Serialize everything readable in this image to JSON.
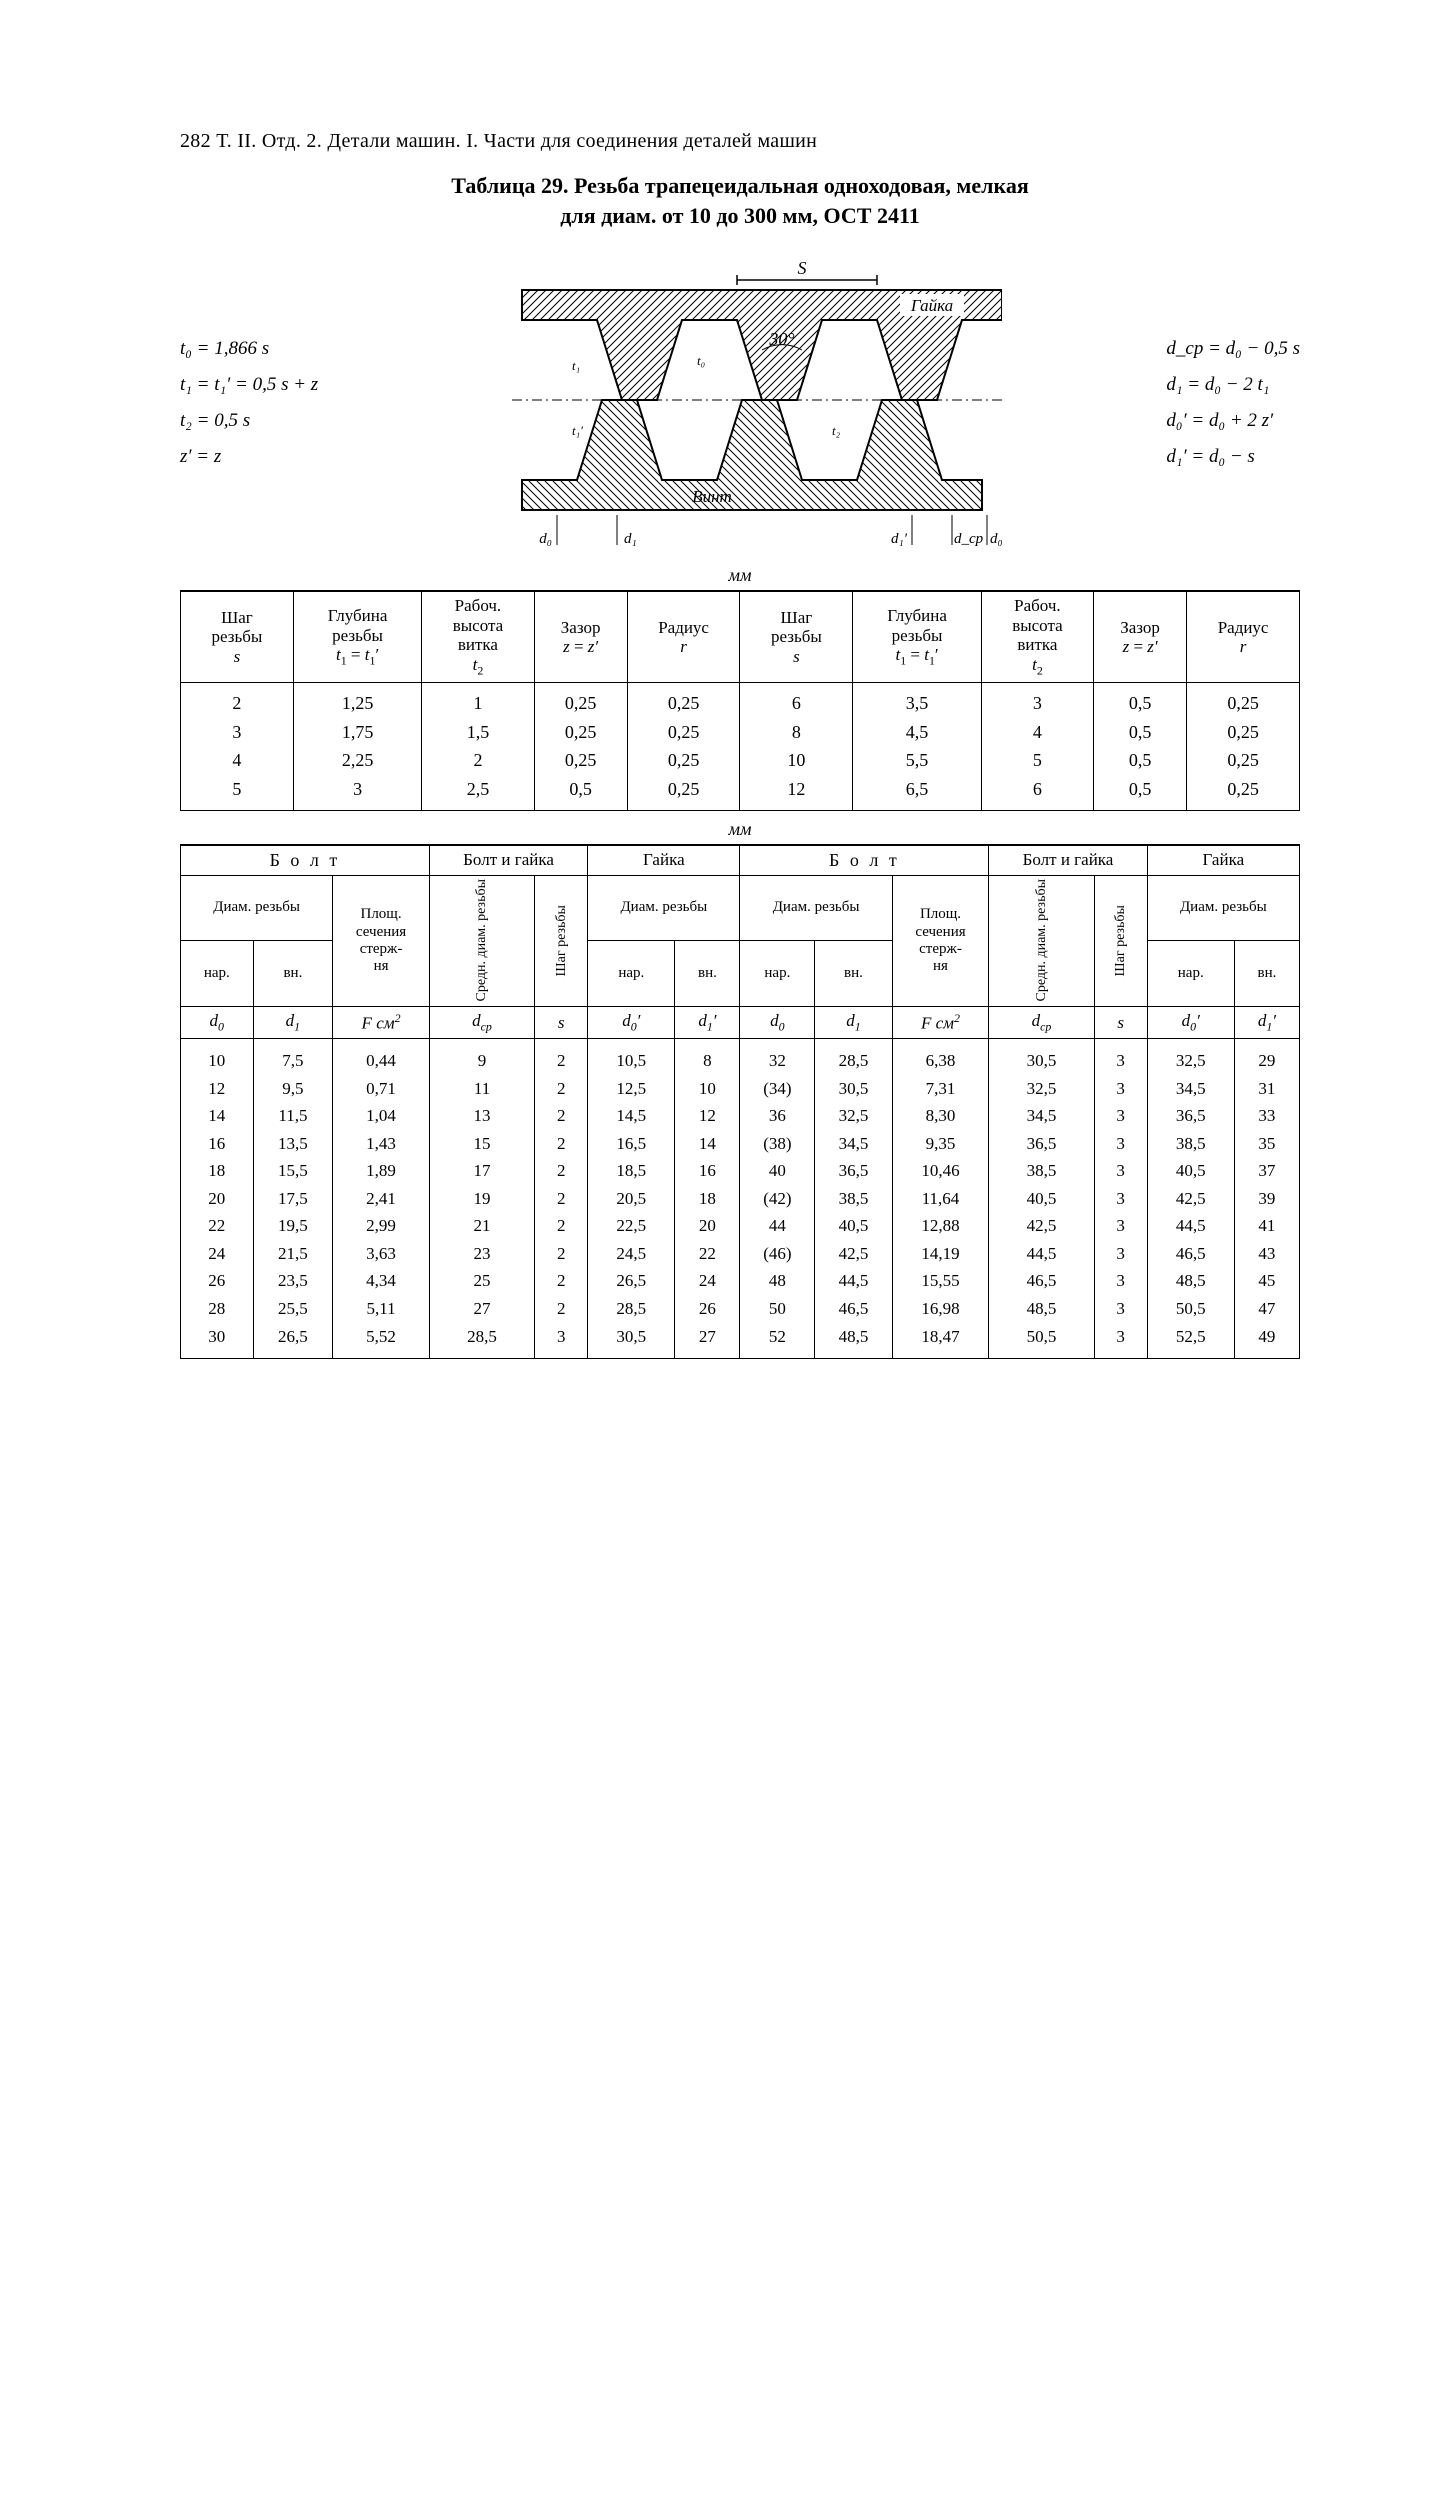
{
  "page_header": "282  Т. II. Отд. 2.  Детали машин. I.  Части для соединения деталей машин",
  "title_line1": "Таблица 29.  Резьба  трапецеидальная  одноходовая,  мелкая",
  "title_line2": "для диам. от 10 до 300 мм, ОСТ 2411",
  "left_eqs": [
    "t₀ = 1,866 s",
    "t₁ = t₁′ = 0,5 s + z",
    "t₂ = 0,5 s",
    "z′ = z"
  ],
  "right_eqs": [
    "d_cp = d₀ − 0,5 s",
    "d₁ = d₀ − 2 t₁",
    "d₀′ = d₀ + 2 z′",
    "d₁′ = d₀ − s"
  ],
  "fig_labels": {
    "nut": "Гайка",
    "screw": "Винт",
    "angle": "30°"
  },
  "unit_label": "мм",
  "table1": {
    "headers": [
      "Шаг резьбы\ns",
      "Глубина резьбы\nt₁ = t₁′",
      "Рабоч. высота витка\nt₂",
      "Зазор\nz = z′",
      "Радиус\nr",
      "Шаг резьбы\ns",
      "Глубина резьбы\nt₁ = t₁′",
      "Рабоч. высота витка\nt₂",
      "Зазор\nz = z′",
      "Радиус\nr"
    ],
    "rows": [
      [
        "2",
        "1,25",
        "1",
        "0,25",
        "0,25",
        "6",
        "3,5",
        "3",
        "0,5",
        "0,25"
      ],
      [
        "3",
        "1,75",
        "1,5",
        "0,25",
        "0,25",
        "8",
        "4,5",
        "4",
        "0,5",
        "0,25"
      ],
      [
        "4",
        "2,25",
        "2",
        "0,25",
        "0,25",
        "10",
        "5,5",
        "5",
        "0,5",
        "0,25"
      ],
      [
        "5",
        "3",
        "2,5",
        "0,5",
        "0,25",
        "12",
        "6,5",
        "6",
        "0,5",
        "0,25"
      ]
    ]
  },
  "table2": {
    "group_headers": [
      "Б о л т",
      "Болт и гайка",
      "Гайка",
      "Б о л т",
      "Болт и гайка",
      "Гайка"
    ],
    "sub_headers": {
      "diam": "Диам. резьбы",
      "area": "Площ. сечения стерж-\nня",
      "mid": "Средн. диам. резьбы",
      "pitch": "Шаг резьбы",
      "nar": "нар.",
      "vn": "вн."
    },
    "sym_row": [
      "d₀",
      "d₁",
      "F см²",
      "d_cp",
      "s",
      "d₀′",
      "d₁′",
      "d₀",
      "d₁",
      "F см²",
      "d_cp",
      "s",
      "d₀′",
      "d₁′"
    ],
    "rows": [
      [
        "10",
        "7,5",
        "0,44",
        "9",
        "2",
        "10,5",
        "8",
        "32",
        "28,5",
        "6,38",
        "30,5",
        "3",
        "32,5",
        "29"
      ],
      [
        "12",
        "9,5",
        "0,71",
        "11",
        "2",
        "12,5",
        "10",
        "(34)",
        "30,5",
        "7,31",
        "32,5",
        "3",
        "34,5",
        "31"
      ],
      [
        "14",
        "11,5",
        "1,04",
        "13",
        "2",
        "14,5",
        "12",
        "36",
        "32,5",
        "8,30",
        "34,5",
        "3",
        "36,5",
        "33"
      ],
      [
        "16",
        "13,5",
        "1,43",
        "15",
        "2",
        "16,5",
        "14",
        "(38)",
        "34,5",
        "9,35",
        "36,5",
        "3",
        "38,5",
        "35"
      ],
      [
        "18",
        "15,5",
        "1,89",
        "17",
        "2",
        "18,5",
        "16",
        "40",
        "36,5",
        "10,46",
        "38,5",
        "3",
        "40,5",
        "37"
      ],
      [
        "20",
        "17,5",
        "2,41",
        "19",
        "2",
        "20,5",
        "18",
        "(42)",
        "38,5",
        "11,64",
        "40,5",
        "3",
        "42,5",
        "39"
      ],
      [
        "22",
        "19,5",
        "2,99",
        "21",
        "2",
        "22,5",
        "20",
        "44",
        "40,5",
        "12,88",
        "42,5",
        "3",
        "44,5",
        "41"
      ],
      [
        "24",
        "21,5",
        "3,63",
        "23",
        "2",
        "24,5",
        "22",
        "(46)",
        "42,5",
        "14,19",
        "44,5",
        "3",
        "46,5",
        "43"
      ],
      [
        "26",
        "23,5",
        "4,34",
        "25",
        "2",
        "26,5",
        "24",
        "48",
        "44,5",
        "15,55",
        "46,5",
        "3",
        "48,5",
        "45"
      ],
      [
        "28",
        "25,5",
        "5,11",
        "27",
        "2",
        "28,5",
        "26",
        "50",
        "46,5",
        "16,98",
        "48,5",
        "3",
        "50,5",
        "47"
      ],
      [
        "30",
        "26,5",
        "5,52",
        "28,5",
        "3",
        "30,5",
        "27",
        "52",
        "48,5",
        "18,47",
        "50,5",
        "3",
        "52,5",
        "49"
      ]
    ]
  }
}
